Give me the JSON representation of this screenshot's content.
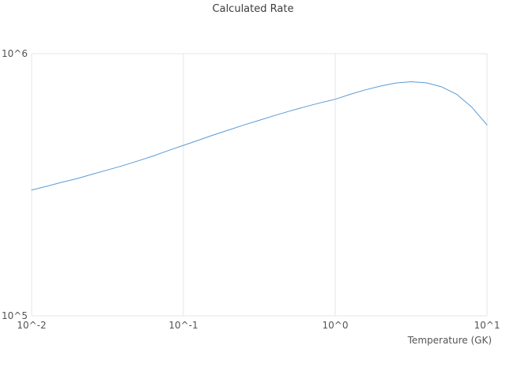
{
  "title": "Calculated Rate",
  "colors": {
    "background": "#ffffff",
    "grid": "#e6e6e6",
    "text": "#545454",
    "line": "#5b9bd5"
  },
  "chart_data": {
    "type": "line",
    "title": "Calculated Rate",
    "xlabel": "Temperature (GK)",
    "ylabel": "",
    "x_scale": "log",
    "y_scale": "log",
    "xlim": [
      0.01,
      10
    ],
    "ylim": [
      100000,
      1000000
    ],
    "grid": true,
    "legend": "none",
    "line_color": "#5b9bd5",
    "grid_color": "#e6e6e6",
    "x_ticks": [
      {
        "value": 0.01,
        "label": "10^-2"
      },
      {
        "value": 0.1,
        "label": "10^-1"
      },
      {
        "value": 1,
        "label": "10^0"
      },
      {
        "value": 10,
        "label": "10^1"
      }
    ],
    "y_ticks": [
      {
        "value": 100000,
        "label": "10^5"
      },
      {
        "value": 1000000,
        "label": "10^6"
      }
    ],
    "series": [
      {
        "name": "Calculated Rate",
        "x": [
          0.01,
          0.0126,
          0.0158,
          0.02,
          0.0251,
          0.0316,
          0.0398,
          0.0501,
          0.0631,
          0.0794,
          0.1,
          0.126,
          0.158,
          0.2,
          0.251,
          0.316,
          0.398,
          0.501,
          0.631,
          0.794,
          1.0,
          1.26,
          1.58,
          2.0,
          2.51,
          3.16,
          3.98,
          5.01,
          6.31,
          7.94,
          10.0
        ],
        "y": [
          302000,
          312000,
          323000,
          334000,
          347000,
          360000,
          374000,
          390000,
          407000,
          427000,
          447000,
          468000,
          490000,
          512000,
          535000,
          557000,
          581000,
          604000,
          627000,
          649000,
          670000,
          700000,
          728000,
          753000,
          773000,
          782000,
          774000,
          748000,
          700000,
          625000,
          535000
        ]
      }
    ]
  }
}
